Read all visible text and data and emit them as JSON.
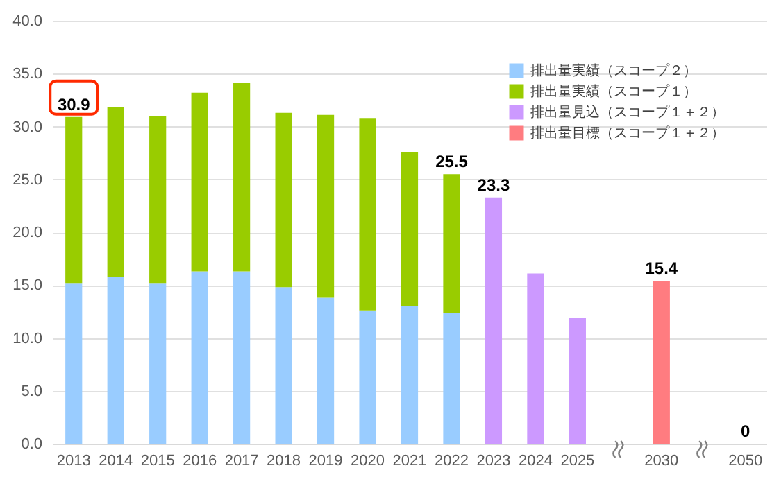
{
  "chart_data": {
    "type": "bar",
    "stacked": true,
    "categories": [
      "2013",
      "2014",
      "2015",
      "2016",
      "2017",
      "2018",
      "2019",
      "2020",
      "2021",
      "2022",
      "2023",
      "2024",
      "2025",
      null,
      "2030",
      null,
      "2050"
    ],
    "series": [
      {
        "name": "排出量実績（スコープ２）",
        "color": "#99ccff",
        "values": [
          15.2,
          15.8,
          15.2,
          16.3,
          16.3,
          14.8,
          13.8,
          12.6,
          13.0,
          12.4,
          null,
          null,
          null,
          null,
          null,
          null,
          null
        ]
      },
      {
        "name": "排出量実績（スコープ１）",
        "color": "#99cc00",
        "values": [
          15.7,
          16.0,
          15.8,
          16.9,
          17.8,
          16.5,
          17.3,
          18.2,
          14.6,
          13.1,
          null,
          null,
          null,
          null,
          null,
          null,
          null
        ]
      },
      {
        "name": "排出量見込（スコープ１＋２）",
        "color": "#cc99ff",
        "values": [
          null,
          null,
          null,
          null,
          null,
          null,
          null,
          null,
          null,
          null,
          23.3,
          16.1,
          11.9,
          null,
          null,
          null,
          null
        ]
      },
      {
        "name": "排出量目標（スコープ１＋２）",
        "color": "#ff7c80",
        "values": [
          null,
          null,
          null,
          null,
          null,
          null,
          null,
          null,
          null,
          null,
          null,
          null,
          null,
          null,
          15.4,
          null,
          0
        ]
      }
    ],
    "totals": [
      "30.9",
      null,
      null,
      null,
      null,
      null,
      null,
      null,
      null,
      "25.5",
      "23.3",
      null,
      null,
      null,
      "15.4",
      null,
      "0"
    ],
    "ylim": [
      0,
      40
    ],
    "yticks": [
      {
        "value": 0,
        "label": "0.0"
      },
      {
        "value": 5,
        "label": "5.0"
      },
      {
        "value": 10,
        "label": "10.0"
      },
      {
        "value": 15,
        "label": "15.0"
      },
      {
        "value": 20,
        "label": "20.0"
      },
      {
        "value": 25,
        "label": "25.0"
      },
      {
        "value": 30,
        "label": "30.0"
      },
      {
        "value": 35,
        "label": "35.0"
      },
      {
        "value": 40,
        "label": "40.0"
      }
    ],
    "grid": true,
    "legend": "top right"
  }
}
